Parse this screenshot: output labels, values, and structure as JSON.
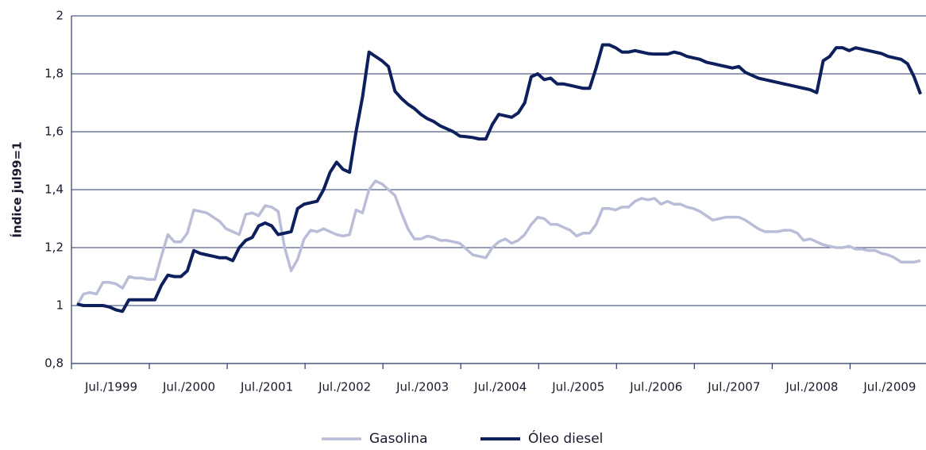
{
  "chart_data": {
    "type": "line",
    "ylabel": "Índice jul99=1",
    "categories": [
      null,
      null,
      null,
      null,
      null,
      null,
      "Jul./1999",
      null,
      null,
      null,
      null,
      null,
      null,
      null,
      null,
      null,
      null,
      null,
      "Jul./2000",
      null,
      null,
      null,
      null,
      null,
      null,
      null,
      null,
      null,
      null,
      null,
      "Jul./2001",
      null,
      null,
      null,
      null,
      null,
      null,
      null,
      null,
      null,
      null,
      null,
      "Jul./2002",
      null,
      null,
      null,
      null,
      null,
      null,
      null,
      null,
      null,
      null,
      null,
      "Jul./2003",
      null,
      null,
      null,
      null,
      null,
      null,
      null,
      null,
      null,
      null,
      null,
      "Jul./2004",
      null,
      null,
      null,
      null,
      null,
      null,
      null,
      null,
      null,
      null,
      null,
      "Jul./2005",
      null,
      null,
      null,
      null,
      null,
      null,
      null,
      null,
      null,
      null,
      null,
      "Jul./2006",
      null,
      null,
      null,
      null,
      null,
      null,
      null,
      null,
      null,
      null,
      null,
      "Jul./2007",
      null,
      null,
      null,
      null,
      null,
      null,
      null,
      null,
      null,
      null,
      null,
      "Jul./2008",
      null,
      null,
      null,
      null,
      null,
      null,
      null,
      null,
      null,
      null,
      null,
      "Jul./2009",
      null,
      null,
      null,
      null
    ],
    "series": [
      {
        "name": "Gasolina",
        "color": "#b9bdd7",
        "values": [
          1.0,
          1.04,
          1.045,
          1.04,
          1.08,
          1.08,
          1.075,
          1.06,
          1.1,
          1.095,
          1.095,
          1.09,
          1.09,
          1.17,
          1.245,
          1.22,
          1.22,
          1.25,
          1.33,
          1.325,
          1.32,
          1.305,
          1.29,
          1.265,
          1.255,
          1.245,
          1.315,
          1.32,
          1.31,
          1.345,
          1.34,
          1.325,
          1.2,
          1.12,
          1.16,
          1.23,
          1.26,
          1.255,
          1.265,
          1.255,
          1.245,
          1.24,
          1.245,
          1.33,
          1.32,
          1.4,
          1.43,
          1.42,
          1.4,
          1.38,
          1.32,
          1.265,
          1.23,
          1.23,
          1.24,
          1.235,
          1.225,
          1.225,
          1.22,
          1.215,
          1.195,
          1.175,
          1.17,
          1.165,
          1.2,
          1.22,
          1.23,
          1.215,
          1.225,
          1.245,
          1.28,
          1.305,
          1.3,
          1.28,
          1.28,
          1.27,
          1.26,
          1.24,
          1.25,
          1.25,
          1.28,
          1.335,
          1.335,
          1.33,
          1.34,
          1.34,
          1.36,
          1.37,
          1.365,
          1.37,
          1.35,
          1.36,
          1.35,
          1.35,
          1.34,
          1.335,
          1.325,
          1.31,
          1.295,
          1.3,
          1.305,
          1.305,
          1.305,
          1.295,
          1.28,
          1.265,
          1.255,
          1.255,
          1.255,
          1.26,
          1.26,
          1.25,
          1.225,
          1.23,
          1.22,
          1.21,
          1.205,
          1.2,
          1.2,
          1.205,
          1.195,
          1.195,
          1.19,
          1.19,
          1.18,
          1.175,
          1.165,
          1.15,
          1.15,
          1.15,
          1.155
        ]
      },
      {
        "name": "Óleo diesel",
        "color": "#0d1f5c",
        "values": [
          1.005,
          1.0,
          1.0,
          1.0,
          1.0,
          0.995,
          0.985,
          0.98,
          1.02,
          1.02,
          1.02,
          1.02,
          1.02,
          1.07,
          1.105,
          1.1,
          1.1,
          1.12,
          1.19,
          1.18,
          1.175,
          1.17,
          1.165,
          1.165,
          1.155,
          1.2,
          1.225,
          1.235,
          1.275,
          1.285,
          1.275,
          1.245,
          1.25,
          1.255,
          1.335,
          1.35,
          1.355,
          1.36,
          1.4,
          1.46,
          1.495,
          1.47,
          1.46,
          1.6,
          1.72,
          1.875,
          1.86,
          1.845,
          1.825,
          1.74,
          1.715,
          1.695,
          1.68,
          1.66,
          1.645,
          1.635,
          1.62,
          1.61,
          1.6,
          1.585,
          1.583,
          1.58,
          1.575,
          1.575,
          1.625,
          1.66,
          1.655,
          1.65,
          1.665,
          1.7,
          1.79,
          1.8,
          1.78,
          1.785,
          1.765,
          1.765,
          1.76,
          1.755,
          1.75,
          1.75,
          1.82,
          1.9,
          1.9,
          1.89,
          1.875,
          1.875,
          1.88,
          1.875,
          1.87,
          1.868,
          1.868,
          1.868,
          1.875,
          1.87,
          1.86,
          1.855,
          1.85,
          1.84,
          1.835,
          1.83,
          1.825,
          1.82,
          1.825,
          1.805,
          1.795,
          1.785,
          1.78,
          1.775,
          1.77,
          1.765,
          1.76,
          1.755,
          1.75,
          1.745,
          1.735,
          1.845,
          1.86,
          1.89,
          1.89,
          1.88,
          1.89,
          1.885,
          1.88,
          1.875,
          1.87,
          1.86,
          1.855,
          1.85,
          1.835,
          1.79,
          1.73
        ]
      }
    ],
    "ylim": [
      0.8,
      2
    ],
    "yticks": [
      {
        "value": 0.8,
        "label": "0,8"
      },
      1,
      {
        "value": 1.2,
        "label": "1,2"
      },
      {
        "value": 1.4,
        "label": "1,4"
      },
      {
        "value": 1.6,
        "label": "1,6"
      },
      {
        "value": 1.8,
        "label": "1,8"
      },
      2
    ],
    "grid": true,
    "legend": "bottom"
  }
}
